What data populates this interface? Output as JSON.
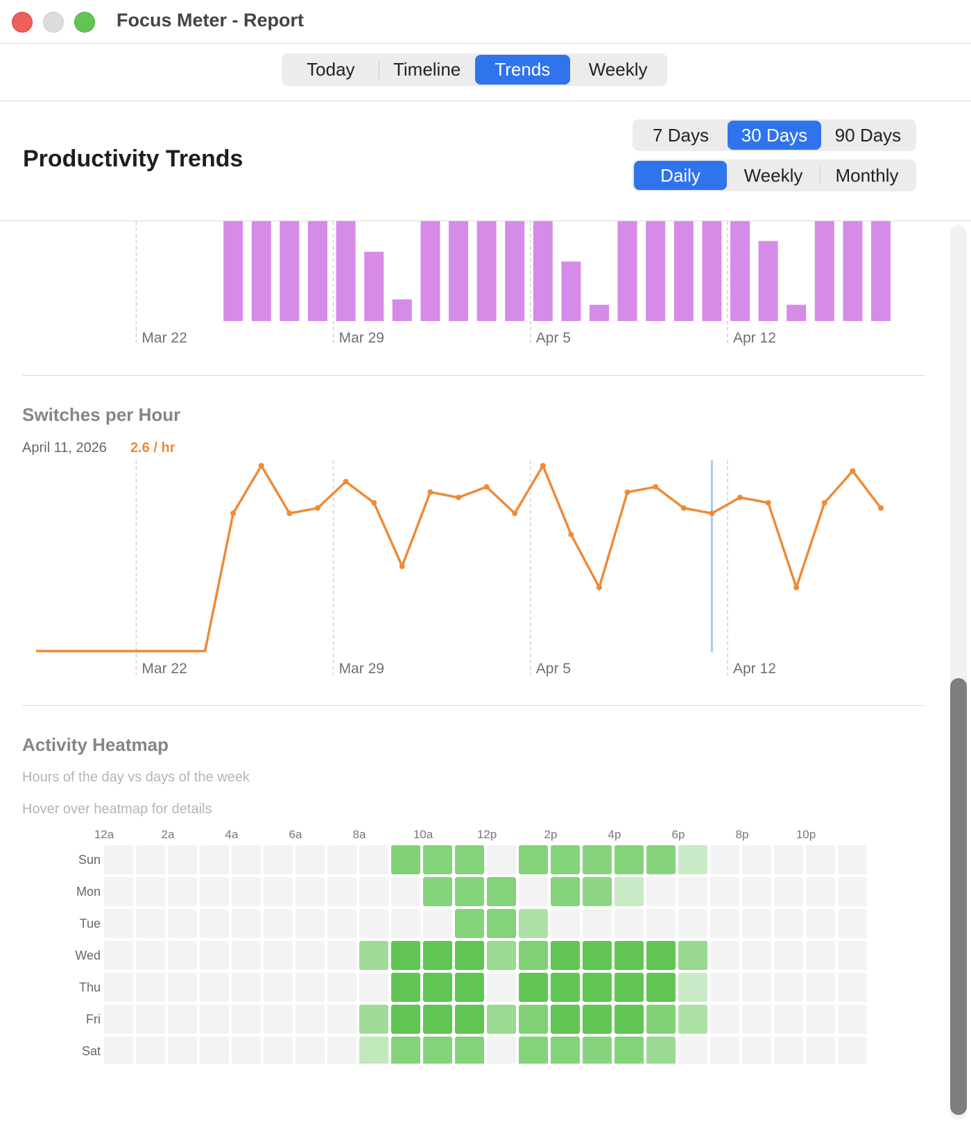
{
  "window": {
    "title": "Focus Meter - Report"
  },
  "tabs": [
    {
      "label": "Today",
      "selected": false
    },
    {
      "label": "Timeline",
      "selected": false
    },
    {
      "label": "Trends",
      "selected": true
    },
    {
      "label": "Weekly",
      "selected": false
    }
  ],
  "header": {
    "title": "Productivity Trends"
  },
  "range": [
    {
      "label": "7 Days",
      "selected": false
    },
    {
      "label": "30 Days",
      "selected": true
    },
    {
      "label": "90 Days",
      "selected": false
    }
  ],
  "granularity": [
    {
      "label": "Daily",
      "selected": true
    },
    {
      "label": "Weekly",
      "selected": false
    },
    {
      "label": "Monthly",
      "selected": false
    }
  ],
  "colors": {
    "accent": "#2f74ec",
    "bars": "#d68be8",
    "line": "#ef8a36",
    "heat_base": "#61c554",
    "heat_empty": "#f3f3f3"
  },
  "chart_data": [
    {
      "type": "bar",
      "title": "",
      "x_tick_labels": [
        "Mar 22",
        "Mar 29",
        "Apr 5",
        "Apr 12"
      ],
      "categories": [
        "Mar 18",
        "Mar 19",
        "Mar 20",
        "Mar 21",
        "Mar 22",
        "Mar 23",
        "Mar 24",
        "Mar 25",
        "Mar 26",
        "Mar 27",
        "Mar 28",
        "Mar 29",
        "Mar 30",
        "Mar 31",
        "Apr 1",
        "Apr 2",
        "Apr 3",
        "Apr 4",
        "Apr 5",
        "Apr 6",
        "Apr 7",
        "Apr 8",
        "Apr 9",
        "Apr 10",
        "Apr 11",
        "Apr 12",
        "Apr 13",
        "Apr 14",
        "Apr 15",
        "Apr 16",
        "Apr 17"
      ],
      "values": [
        0,
        0,
        0,
        0,
        0,
        0,
        0,
        100,
        100,
        100,
        100,
        100,
        64,
        20,
        100,
        100,
        100,
        96,
        100,
        55,
        15,
        100,
        100,
        100,
        100,
        100,
        74,
        15,
        100,
        100,
        100
      ],
      "note_clipped_top": true
    },
    {
      "type": "line",
      "title": "Switches per Hour",
      "selected_point": {
        "date": "April 11, 2026",
        "value": "2.6 / hr"
      },
      "x_tick_labels": [
        "Mar 22",
        "Mar 29",
        "Apr 5",
        "Apr 12"
      ],
      "categories": [
        "Mar 18",
        "Mar 19",
        "Mar 20",
        "Mar 21",
        "Mar 22",
        "Mar 23",
        "Mar 24",
        "Mar 25",
        "Mar 26",
        "Mar 27",
        "Mar 28",
        "Mar 29",
        "Mar 30",
        "Mar 31",
        "Apr 1",
        "Apr 2",
        "Apr 3",
        "Apr 4",
        "Apr 5",
        "Apr 6",
        "Apr 7",
        "Apr 8",
        "Apr 9",
        "Apr 10",
        "Apr 11",
        "Apr 12",
        "Apr 13",
        "Apr 14",
        "Apr 15",
        "Apr 16",
        "Apr 17"
      ],
      "values": [
        0,
        0,
        0,
        0,
        0,
        0,
        0,
        2.6,
        3.5,
        2.6,
        2.7,
        3.2,
        2.8,
        1.6,
        3.0,
        2.9,
        3.1,
        2.6,
        3.5,
        2.2,
        1.2,
        3.0,
        3.1,
        2.7,
        2.6,
        2.9,
        2.8,
        1.2,
        2.8,
        3.4,
        2.7
      ]
    },
    {
      "type": "heatmap",
      "title": "Activity Heatmap",
      "subtitle": "Hours of the day vs days of the week",
      "hint": "Hover over heatmap for details",
      "x_labels": [
        "12a",
        "2a",
        "4a",
        "6a",
        "8a",
        "10a",
        "12p",
        "2p",
        "4p",
        "6p",
        "8p",
        "10p"
      ],
      "y_labels": [
        "Sun",
        "Mon",
        "Tue",
        "Wed",
        "Thu",
        "Fri",
        "Sat"
      ],
      "matrix": [
        [
          0,
          0,
          0,
          0,
          0,
          0,
          0,
          0,
          0,
          0.75,
          0.72,
          0.72,
          0,
          0.72,
          0.72,
          0.7,
          0.72,
          0.7,
          0.18,
          0,
          0,
          0,
          0,
          0
        ],
        [
          0,
          0,
          0,
          0,
          0,
          0,
          0,
          0,
          0,
          0,
          0.72,
          0.72,
          0.72,
          0,
          0.72,
          0.65,
          0.18,
          0,
          0,
          0,
          0,
          0,
          0,
          0
        ],
        [
          0,
          0,
          0,
          0,
          0,
          0,
          0,
          0,
          0,
          0,
          0,
          0.72,
          0.72,
          0.4,
          0,
          0,
          0,
          0,
          0,
          0,
          0,
          0,
          0,
          0
        ],
        [
          0,
          0,
          0,
          0,
          0,
          0,
          0,
          0,
          0.5,
          1,
          1,
          1,
          0.55,
          0.75,
          1,
          1,
          1,
          1,
          0.58,
          0,
          0,
          0,
          0,
          0
        ],
        [
          0,
          0,
          0,
          0,
          0,
          0,
          0,
          0,
          0,
          1,
          1,
          1,
          0,
          1,
          1,
          1,
          1,
          1,
          0.18,
          0,
          0,
          0,
          0,
          0
        ],
        [
          0,
          0,
          0,
          0,
          0,
          0,
          0,
          0,
          0.5,
          1,
          1,
          1,
          0.55,
          0.75,
          1,
          1,
          1,
          0.75,
          0.4,
          0,
          0,
          0,
          0,
          0
        ],
        [
          0,
          0,
          0,
          0,
          0,
          0,
          0,
          0,
          0.25,
          0.72,
          0.72,
          0.72,
          0,
          0.72,
          0.72,
          0.7,
          0.72,
          0.55,
          0,
          0,
          0,
          0,
          0,
          0
        ]
      ]
    }
  ]
}
